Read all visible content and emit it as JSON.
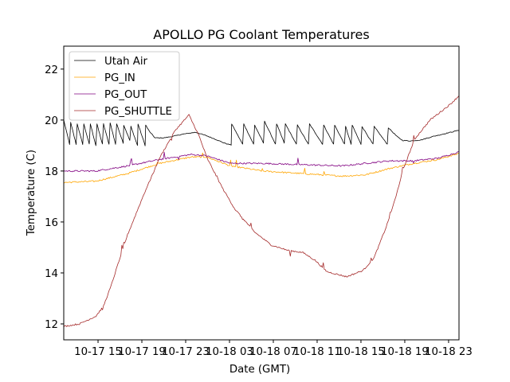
{
  "chart_data": {
    "type": "line",
    "title": "APOLLO PG Coolant Temperatures",
    "xlabel": "Date (GMT)",
    "ylabel": "Temperature (C)",
    "x_units": "hours since 10-17 00:00 GMT",
    "xlim": [
      11.87,
      47.95
    ],
    "ylim": [
      11.375,
      22.9
    ],
    "grid": false,
    "legend_position": "top-left",
    "x_ticks": [
      {
        "value": 15,
        "label": "10-17 15"
      },
      {
        "value": 19,
        "label": "10-17 19"
      },
      {
        "value": 23,
        "label": "10-17 23"
      },
      {
        "value": 27,
        "label": "10-18 03"
      },
      {
        "value": 31,
        "label": "10-18 07"
      },
      {
        "value": 35,
        "label": "10-18 11"
      },
      {
        "value": 39,
        "label": "10-18 15"
      },
      {
        "value": 43,
        "label": "10-18 19"
      },
      {
        "value": 47,
        "label": "10-18 23"
      }
    ],
    "y_ticks": [
      {
        "value": 12,
        "label": "12"
      },
      {
        "value": 14,
        "label": "14"
      },
      {
        "value": 16,
        "label": "16"
      },
      {
        "value": 18,
        "label": "18"
      },
      {
        "value": 20,
        "label": "20"
      },
      {
        "value": 22,
        "label": "22"
      }
    ],
    "series": [
      {
        "name": "Utah Air",
        "color": "#000000",
        "points": [
          [
            11.87,
            20.0
          ],
          [
            12.4,
            19.05
          ],
          [
            12.5,
            19.9
          ],
          [
            13.0,
            19.05
          ],
          [
            13.1,
            19.85
          ],
          [
            13.6,
            19.05
          ],
          [
            13.7,
            19.85
          ],
          [
            14.2,
            19.05
          ],
          [
            14.3,
            19.85
          ],
          [
            14.8,
            19.0
          ],
          [
            14.9,
            19.85
          ],
          [
            15.4,
            19.05
          ],
          [
            15.5,
            19.85
          ],
          [
            16.0,
            19.05
          ],
          [
            16.1,
            19.9
          ],
          [
            16.6,
            19.05
          ],
          [
            16.7,
            19.85
          ],
          [
            17.3,
            19.1
          ],
          [
            17.35,
            19.8
          ],
          [
            17.9,
            19.2
          ],
          [
            18.0,
            19.75
          ],
          [
            18.6,
            19.0
          ],
          [
            18.65,
            19.85
          ],
          [
            19.3,
            19.0
          ],
          [
            19.35,
            19.8
          ],
          [
            19.7,
            19.55
          ],
          [
            20.2,
            19.3
          ],
          [
            21.0,
            19.3
          ],
          [
            21.7,
            19.35
          ],
          [
            22.8,
            19.45
          ],
          [
            23.9,
            19.52
          ],
          [
            24.8,
            19.4
          ],
          [
            25.7,
            19.25
          ],
          [
            26.5,
            19.1
          ],
          [
            27.15,
            19.02
          ],
          [
            27.2,
            19.85
          ],
          [
            28.2,
            19.05
          ],
          [
            28.3,
            19.85
          ],
          [
            29.2,
            19.05
          ],
          [
            29.3,
            19.8
          ],
          [
            30.1,
            19.1
          ],
          [
            30.2,
            19.95
          ],
          [
            31.2,
            19.05
          ],
          [
            31.3,
            19.85
          ],
          [
            32.0,
            19.1
          ],
          [
            32.1,
            19.85
          ],
          [
            33.1,
            19.05
          ],
          [
            33.2,
            19.8
          ],
          [
            34.2,
            19.05
          ],
          [
            34.3,
            19.85
          ],
          [
            35.5,
            19.05
          ],
          [
            35.6,
            19.8
          ],
          [
            36.5,
            19.05
          ],
          [
            36.6,
            19.8
          ],
          [
            37.5,
            19.05
          ],
          [
            37.6,
            19.75
          ],
          [
            38.1,
            19.05
          ],
          [
            38.2,
            19.8
          ],
          [
            39.0,
            19.05
          ],
          [
            39.1,
            19.75
          ],
          [
            40.1,
            19.05
          ],
          [
            40.2,
            19.75
          ],
          [
            41.4,
            19.05
          ],
          [
            41.5,
            19.7
          ],
          [
            42.3,
            19.35
          ],
          [
            42.8,
            19.2
          ],
          [
            43.5,
            19.18
          ],
          [
            44.5,
            19.22
          ],
          [
            45.5,
            19.35
          ],
          [
            46.5,
            19.45
          ],
          [
            47.95,
            19.6
          ]
        ]
      },
      {
        "name": "PG_IN",
        "color": "#ffa500",
        "points": [
          [
            11.87,
            17.55
          ],
          [
            14.8,
            17.6
          ],
          [
            17.7,
            17.9
          ],
          [
            20.6,
            18.3
          ],
          [
            23.5,
            18.55
          ],
          [
            24.9,
            18.55
          ],
          [
            27.1,
            18.2
          ],
          [
            30.0,
            18.0
          ],
          [
            33.6,
            17.9
          ],
          [
            37.3,
            17.8
          ],
          [
            39.4,
            17.85
          ],
          [
            41.6,
            18.1
          ],
          [
            43.8,
            18.3
          ],
          [
            46.0,
            18.45
          ],
          [
            47.95,
            18.7
          ]
        ]
      },
      {
        "name": "PG_OUT",
        "color": "#800080",
        "points": [
          [
            11.87,
            18.0
          ],
          [
            14.8,
            18.0
          ],
          [
            17.7,
            18.2
          ],
          [
            20.6,
            18.45
          ],
          [
            23.5,
            18.65
          ],
          [
            24.9,
            18.6
          ],
          [
            27.1,
            18.3
          ],
          [
            30.0,
            18.3
          ],
          [
            33.6,
            18.25
          ],
          [
            37.3,
            18.2
          ],
          [
            39.4,
            18.3
          ],
          [
            41.6,
            18.4
          ],
          [
            43.8,
            18.4
          ],
          [
            46.0,
            18.5
          ],
          [
            47.95,
            18.75
          ]
        ]
      },
      {
        "name": "PG_SHUTTLE",
        "color": "#a52a2a",
        "points": [
          [
            11.87,
            11.9
          ],
          [
            13.3,
            12.0
          ],
          [
            14.8,
            12.3
          ],
          [
            15.5,
            12.7
          ],
          [
            16.2,
            13.5
          ],
          [
            17.0,
            14.6
          ],
          [
            17.7,
            15.5
          ],
          [
            19.1,
            17.0
          ],
          [
            20.6,
            18.5
          ],
          [
            22.05,
            19.6
          ],
          [
            23.3,
            20.2
          ],
          [
            24.2,
            19.4
          ],
          [
            24.96,
            18.5
          ],
          [
            26.4,
            17.3
          ],
          [
            27.5,
            16.5
          ],
          [
            29.3,
            15.6
          ],
          [
            30.8,
            15.1
          ],
          [
            32.2,
            14.9
          ],
          [
            33.7,
            14.8
          ],
          [
            34.8,
            14.5
          ],
          [
            35.9,
            14.05
          ],
          [
            37.7,
            13.85
          ],
          [
            39.2,
            14.1
          ],
          [
            40.2,
            14.6
          ],
          [
            41.3,
            15.8
          ],
          [
            42.2,
            17.0
          ],
          [
            42.8,
            18.0
          ],
          [
            43.9,
            19.25
          ],
          [
            45.3,
            20.0
          ],
          [
            47.1,
            20.6
          ],
          [
            47.95,
            20.95
          ]
        ]
      }
    ]
  }
}
